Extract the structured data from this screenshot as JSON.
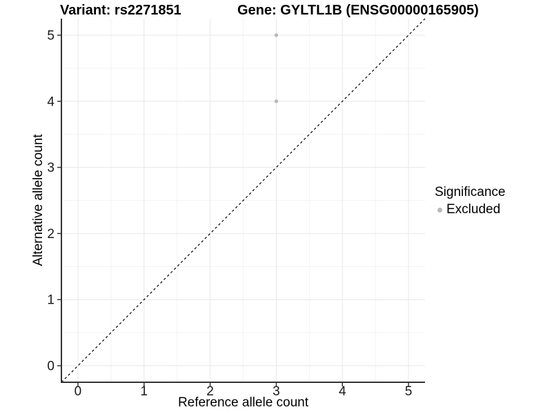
{
  "titles": {
    "variant": "Variant: rs2271851",
    "gene": "Gene: GYLTL1B (ENSG00000165905)"
  },
  "chart_data": {
    "type": "scatter",
    "xlabel": "Reference allele count",
    "ylabel": "Alternative allele count",
    "xlim": [
      -0.25,
      5.25
    ],
    "ylim": [
      -0.25,
      5.25
    ],
    "x_ticks": [
      0,
      1,
      2,
      3,
      4,
      5
    ],
    "y_ticks": [
      0,
      1,
      2,
      3,
      4,
      5
    ],
    "x_minor_ticks": [
      0.5,
      1.5,
      2.5,
      3.5,
      4.5
    ],
    "y_minor_ticks": [
      0.5,
      1.5,
      2.5,
      3.5,
      4.5
    ],
    "grid": true,
    "identity_line": {
      "style": "dashed",
      "from": [
        -0.25,
        -0.25
      ],
      "to": [
        5.25,
        5.25
      ]
    },
    "series": [
      {
        "name": "Excluded",
        "color": "#b9b9b9",
        "points": [
          [
            3,
            4
          ],
          [
            3,
            5
          ]
        ]
      }
    ],
    "legend": {
      "title": "Significance",
      "position": "right",
      "entries": [
        {
          "label": "Excluded",
          "color": "#b9b9b9"
        }
      ]
    }
  },
  "colors": {
    "background": "#ffffff",
    "point": "#b9b9b9",
    "grid_major": "#e7e7e7",
    "grid_minor": "#f3f3f3",
    "axis_line": "#333333",
    "tick_mark": "#333333",
    "tick_label": "#1a1a1a",
    "identity_line": "#000000"
  }
}
